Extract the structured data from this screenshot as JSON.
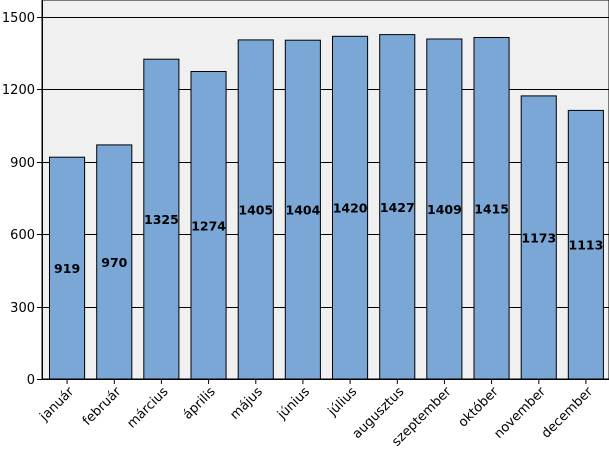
{
  "chart_data": {
    "type": "bar",
    "title": "",
    "xlabel": "",
    "ylabel": "",
    "categories": [
      "január",
      "február",
      "március",
      "április",
      "május",
      "június",
      "július",
      "augusztus",
      "szeptember",
      "október",
      "november",
      "december"
    ],
    "values": [
      919,
      970,
      1325,
      1274,
      1405,
      1404,
      1420,
      1427,
      1409,
      1415,
      1173,
      1113
    ],
    "ylim": [
      0,
      1500
    ],
    "yticks": [
      0,
      300,
      600,
      900,
      1200,
      1500
    ],
    "grid": true,
    "bar_color": "#7aa7d6",
    "bar_edge_color": "#000000",
    "plot_background": "#f0f0f0",
    "x_tick_rotation": "rotated about 45 degrees"
  }
}
